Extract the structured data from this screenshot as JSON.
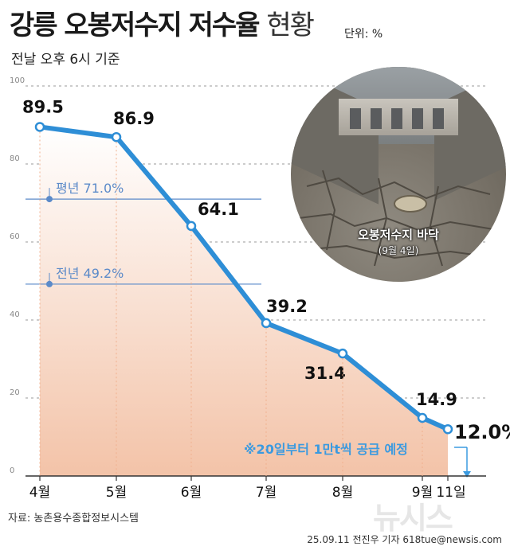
{
  "header": {
    "title_bold": "강릉 오봉저수지 저수율",
    "title_light": "현황",
    "unit": "단위: %",
    "subtitle": "전날 오후 6시 기준"
  },
  "chart_data": {
    "type": "line",
    "categories": [
      "4월",
      "5월",
      "6월",
      "7월",
      "8월",
      "9월",
      "11일"
    ],
    "series": [
      {
        "values": [
          89.5,
          86.9,
          64.1,
          39.2,
          31.4,
          14.9,
          12.0
        ],
        "data_labels": [
          "89.5",
          "86.9",
          "64.1",
          "39.2",
          "31.4",
          "14.9",
          "12.0%"
        ]
      }
    ],
    "ylim": [
      0,
      100
    ],
    "yticks": [
      "0",
      "20",
      "40",
      "60",
      "80",
      "100"
    ],
    "reference_lines": [
      {
        "label_prefix": "평년",
        "label_value": "71.0%",
        "value": 71.0
      },
      {
        "label_prefix": "전년",
        "label_value": "49.2%",
        "value": 49.2
      }
    ],
    "annotation": "※20일부터 1만t씩 공급 예정",
    "grid": true,
    "colors": {
      "line": "#2e8ed6",
      "reference": "#5b8ac9",
      "area_top": "#ffffff",
      "area_bottom": "#f3c3a8",
      "annotation": "#3a9ae0"
    }
  },
  "photo": {
    "caption": "오봉저수지 바닥",
    "date": "(9월 4일)"
  },
  "footer": {
    "source": "자료: 농촌용수종합정보시스템",
    "credit": "25.09.11 전진우 기자 618tue@newsis.com",
    "logo": "뉴시스"
  }
}
